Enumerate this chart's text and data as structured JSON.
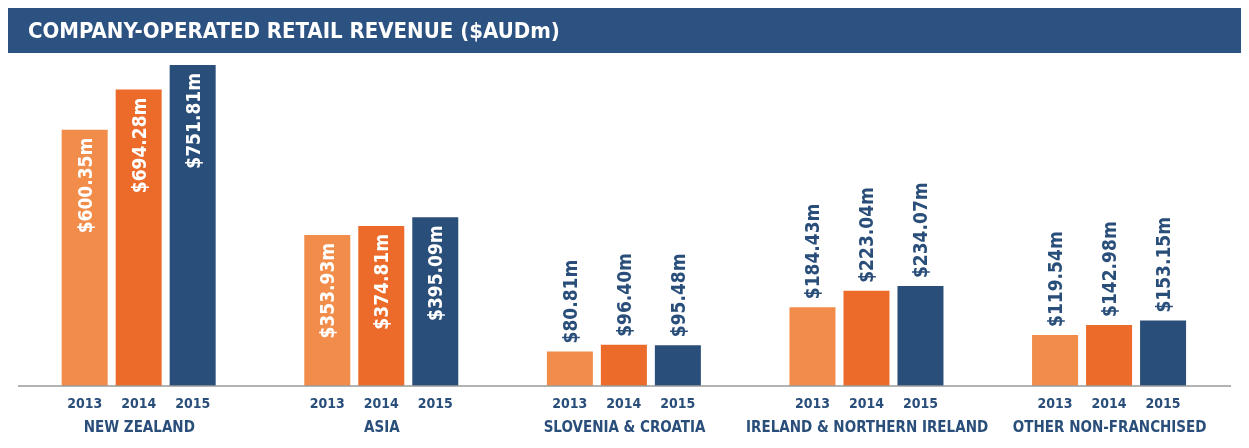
{
  "chart_data": {
    "type": "bar",
    "title": "COMPANY-OPERATED RETAIL REVENUE ($AUDm)",
    "categories": [
      "NEW ZEALAND",
      "ASIA",
      "SLOVENIA & CROATIA",
      "IRELAND & NORTHERN IRELAND",
      "OTHER NON-FRANCHISED"
    ],
    "series": [
      {
        "name": "2013",
        "color": "#f28c4a",
        "values": [
          600.35,
          353.93,
          80.81,
          184.43,
          119.54
        ],
        "value_labels": [
          "$600.35m",
          "$353.93m",
          "$80.81m",
          "$184.43m",
          "$119.54m"
        ]
      },
      {
        "name": "2014",
        "color": "#ec6b2a",
        "values": [
          694.28,
          374.81,
          96.4,
          223.04,
          142.98
        ],
        "value_labels": [
          "$694.28m",
          "$374.81m",
          "$96.40m",
          "$223.04m",
          "$142.98m"
        ]
      },
      {
        "name": "2015",
        "color": "#2a4e7a",
        "values": [
          751.81,
          395.09,
          95.48,
          234.07,
          153.15
        ],
        "value_labels": [
          "$751.81m",
          "$395.09m",
          "$95.48m",
          "$234.07m",
          "$153.15m"
        ]
      }
    ]
  }
}
